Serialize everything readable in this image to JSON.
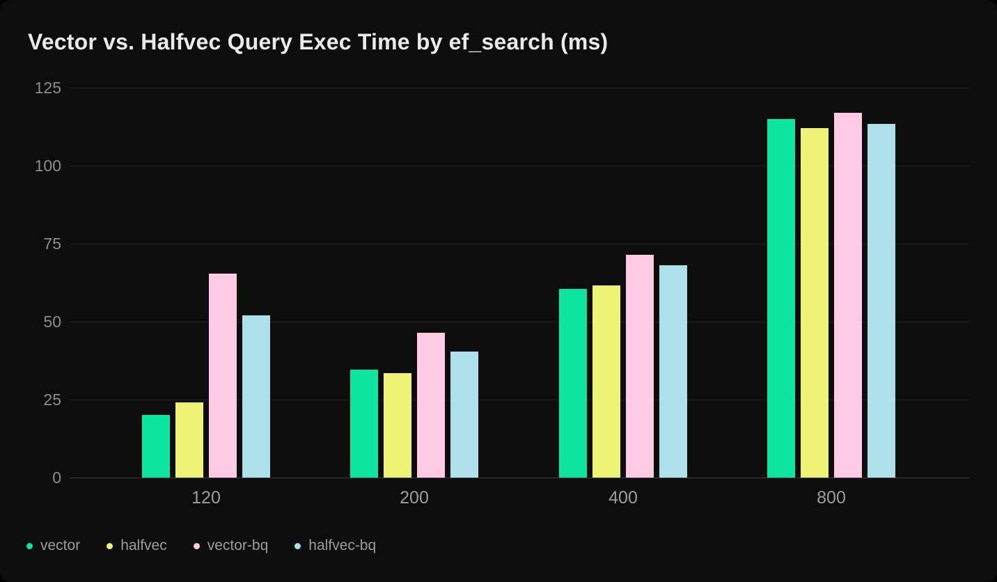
{
  "title": "Vector vs. Halfvec Query Exec Time by ef_search (ms)",
  "chart_data": {
    "type": "bar",
    "title": "Vector vs. Halfvec Query Exec Time by ef_search (ms)",
    "xlabel": "",
    "ylabel": "",
    "categories": [
      "120",
      "200",
      "400",
      "800"
    ],
    "series": [
      {
        "name": "vector",
        "color": "#0de5a1",
        "values": [
          20,
          34.5,
          60.5,
          115
        ]
      },
      {
        "name": "halfvec",
        "color": "#eef275",
        "values": [
          24,
          33.5,
          61.5,
          112
        ]
      },
      {
        "name": "vector-bq",
        "color": "#ffcbe4",
        "values": [
          65.5,
          46.5,
          71.5,
          117
        ]
      },
      {
        "name": "halfvec-bq",
        "color": "#ade0ea",
        "values": [
          52,
          40.5,
          68,
          113.5
        ]
      }
    ],
    "ylim": [
      0,
      125
    ],
    "yticks": [
      0,
      25,
      50,
      75,
      100,
      125
    ],
    "grid": "horizontal",
    "legend_position": "bottom-left",
    "background_color": "#0d0d0e",
    "gridline_color": "rgba(255,255,255,0.10)",
    "tick_label_color": "#9e9e9e"
  },
  "legend": {
    "items": [
      {
        "label": "vector",
        "color": "#0de5a1"
      },
      {
        "label": "halfvec",
        "color": "#eef275"
      },
      {
        "label": "vector-bq",
        "color": "#ffcbe4"
      },
      {
        "label": "halfvec-bq",
        "color": "#ade0ea"
      }
    ]
  }
}
